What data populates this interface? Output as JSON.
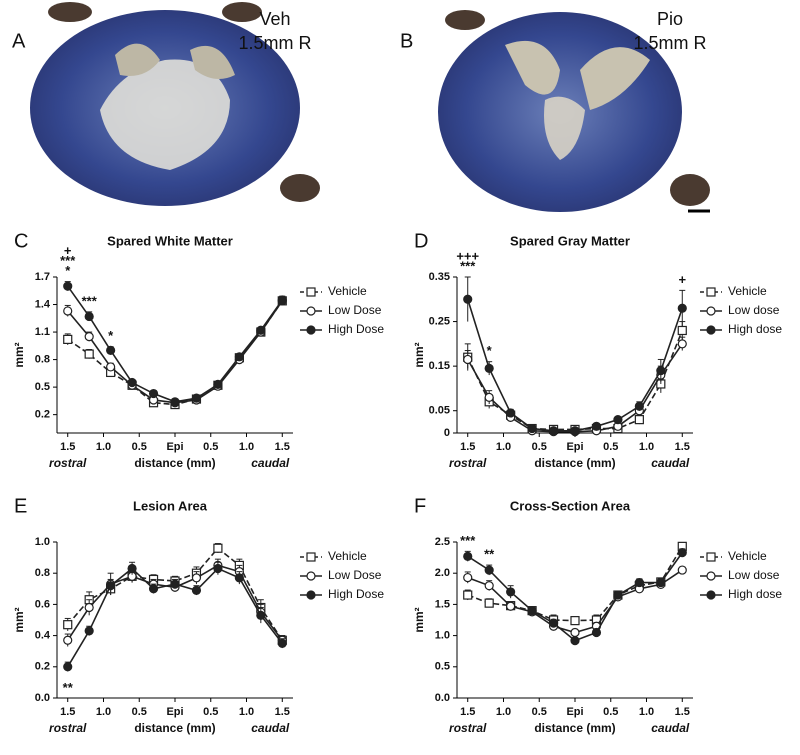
{
  "panels": [
    {
      "letter": "A",
      "label": [
        "Veh",
        "1.5mm R"
      ]
    },
    {
      "letter": "B",
      "label": [
        "Pio",
        "1.5mm R"
      ]
    }
  ],
  "chart_data": [
    {
      "type": "line",
      "panel": "C",
      "title": "Spared White Matter",
      "ylabel": "mm²",
      "xlabel": "distance (mm)",
      "x_left_label": "rostral",
      "x_right_label": "caudal",
      "x": [
        -1.5,
        -1.2,
        -0.9,
        -0.6,
        -0.3,
        0,
        0.3,
        0.6,
        0.9,
        1.2,
        1.5
      ],
      "xlim": [
        -1.65,
        1.65
      ],
      "xticks": [
        {
          "value": -1.5,
          "label": "1.5"
        },
        {
          "value": -1,
          "label": "1.0"
        },
        {
          "value": -0.5,
          "label": "0.5"
        },
        {
          "value": 0,
          "label": "Epi"
        },
        0.5,
        {
          "value": 1,
          "label": "1.0"
        },
        1.5
      ],
      "ylim": [
        0,
        1.7
      ],
      "yticks": [
        0.2,
        0.5,
        0.8,
        1.1,
        1.4,
        1.7
      ],
      "series": [
        {
          "name": "Vehicle",
          "color": "#222",
          "marker": "square",
          "filled": false,
          "dashed": true,
          "values": [
            1.02,
            0.86,
            0.66,
            0.52,
            0.33,
            0.31,
            0.37,
            0.52,
            0.82,
            1.1,
            1.44
          ],
          "errors": [
            0.06,
            0.05,
            0.04,
            0.03,
            0.02,
            0.02,
            0.02,
            0.03,
            0.03,
            0.03,
            0.05
          ]
        },
        {
          "name": "Low Dose",
          "color": "#222",
          "marker": "circle",
          "filled": false,
          "dashed": false,
          "values": [
            1.33,
            1.05,
            0.72,
            0.52,
            0.36,
            0.33,
            0.36,
            0.51,
            0.8,
            1.1,
            1.44
          ],
          "errors": [
            0.06,
            0.05,
            0.04,
            0.03,
            0.02,
            0.02,
            0.02,
            0.02,
            0.03,
            0.03,
            0.04
          ]
        },
        {
          "name": "High Dose",
          "color": "#222",
          "marker": "circle",
          "filled": true,
          "dashed": false,
          "values": [
            1.6,
            1.27,
            0.9,
            0.55,
            0.43,
            0.34,
            0.38,
            0.53,
            0.83,
            1.12,
            1.45
          ],
          "errors": [
            0.05,
            0.05,
            0.04,
            0.03,
            0.03,
            0.02,
            0.02,
            0.02,
            0.03,
            0.03,
            0.04
          ]
        }
      ],
      "annotations": [
        {
          "text": "*",
          "x": -1.5
        },
        {
          "text": "***",
          "x": -1.5
        },
        {
          "text": "+",
          "x": -1.5
        },
        {
          "text": "***",
          "x": -1.2
        },
        {
          "text": "*",
          "x": -0.9
        }
      ]
    },
    {
      "type": "line",
      "panel": "D",
      "title": "Spared Gray Matter",
      "ylabel": "mm²",
      "xlabel": "distance (mm)",
      "x_left_label": "rostral",
      "x_right_label": "caudal",
      "x": [
        -1.5,
        -1.2,
        -0.9,
        -0.6,
        -0.3,
        0,
        0.3,
        0.6,
        0.9,
        1.2,
        1.5
      ],
      "xlim": [
        -1.65,
        1.65
      ],
      "xticks": [
        {
          "value": -1.5,
          "label": "1.5"
        },
        {
          "value": -1,
          "label": "1.0"
        },
        {
          "value": -0.5,
          "label": "0.5"
        },
        {
          "value": 0,
          "label": "Epi"
        },
        0.5,
        {
          "value": 1,
          "label": "1.0"
        },
        1.5
      ],
      "ylim": [
        0,
        0.35
      ],
      "yticks": [
        0,
        0.05,
        0.15,
        0.25,
        0.35
      ],
      "series": [
        {
          "name": "Vehicle",
          "color": "#222",
          "marker": "square",
          "filled": false,
          "dashed": true,
          "values": [
            0.17,
            0.07,
            0.04,
            0.01,
            0.008,
            0.008,
            0.01,
            0.01,
            0.03,
            0.11,
            0.23
          ],
          "errors": [
            0.03,
            0.015,
            0.008,
            0.004,
            0.004,
            0.004,
            0.004,
            0.005,
            0.01,
            0.02,
            0.02
          ]
        },
        {
          "name": "Low dose",
          "color": "#222",
          "marker": "circle",
          "filled": false,
          "dashed": false,
          "values": [
            0.165,
            0.08,
            0.035,
            0.005,
            0.003,
            0.003,
            0.005,
            0.015,
            0.05,
            0.13,
            0.2
          ],
          "errors": [
            0.02,
            0.015,
            0.008,
            0.004,
            0.003,
            0.003,
            0.003,
            0.005,
            0.01,
            0.02,
            0.015
          ]
        },
        {
          "name": "High dose",
          "color": "#222",
          "marker": "circle",
          "filled": true,
          "dashed": false,
          "values": [
            0.3,
            0.145,
            0.045,
            0.01,
            0.005,
            0.005,
            0.015,
            0.03,
            0.06,
            0.14,
            0.28
          ],
          "errors": [
            0.05,
            0.015,
            0.008,
            0.004,
            0.003,
            0.003,
            0.004,
            0.006,
            0.01,
            0.025,
            0.04
          ]
        }
      ],
      "annotations": [
        {
          "text": "***",
          "x": -1.5
        },
        {
          "text": "+++",
          "x": -1.5
        },
        {
          "text": "*",
          "x": -1.2
        },
        {
          "text": "+",
          "x": 1.5
        }
      ]
    },
    {
      "type": "line",
      "panel": "E",
      "title": "Lesion Area",
      "ylabel": "mm²",
      "xlabel": "distance (mm)",
      "x_left_label": "rostral",
      "x_right_label": "caudal",
      "x": [
        -1.5,
        -1.2,
        -0.9,
        -0.6,
        -0.3,
        0,
        0.3,
        0.6,
        0.9,
        1.2,
        1.5
      ],
      "xlim": [
        -1.65,
        1.65
      ],
      "xticks": [
        {
          "value": -1.5,
          "label": "1.5"
        },
        {
          "value": -1,
          "label": "1.0"
        },
        {
          "value": -0.5,
          "label": "0.5"
        },
        {
          "value": 0,
          "label": "Epi"
        },
        0.5,
        {
          "value": 1,
          "label": "1.0"
        },
        1.5
      ],
      "ylim": [
        0,
        1
      ],
      "yticks": [
        {
          "value": 0,
          "label": "0.0"
        },
        0.2,
        0.4,
        0.6,
        0.8,
        {
          "value": 1,
          "label": "1.0"
        }
      ],
      "series": [
        {
          "name": "Vehicle",
          "color": "#222",
          "marker": "square",
          "filled": false,
          "dashed": true,
          "values": [
            0.47,
            0.63,
            0.7,
            0.78,
            0.76,
            0.75,
            0.8,
            0.96,
            0.85,
            0.58,
            0.37
          ],
          "errors": [
            0.04,
            0.05,
            0.04,
            0.04,
            0.03,
            0.03,
            0.04,
            0.03,
            0.04,
            0.05,
            0.03
          ]
        },
        {
          "name": "Low Dose",
          "color": "#222",
          "marker": "circle",
          "filled": false,
          "dashed": false,
          "values": [
            0.37,
            0.58,
            0.73,
            0.78,
            0.73,
            0.71,
            0.77,
            0.85,
            0.81,
            0.55,
            0.37
          ],
          "errors": [
            0.04,
            0.05,
            0.07,
            0.04,
            0.03,
            0.03,
            0.04,
            0.04,
            0.04,
            0.05,
            0.03
          ]
        },
        {
          "name": "High Dose",
          "color": "#222",
          "marker": "circle",
          "filled": true,
          "dashed": false,
          "values": [
            0.2,
            0.43,
            0.72,
            0.83,
            0.7,
            0.73,
            0.69,
            0.83,
            0.77,
            0.53,
            0.35
          ],
          "errors": [
            0.03,
            0.03,
            0.04,
            0.04,
            0.03,
            0.03,
            0.03,
            0.04,
            0.04,
            0.05,
            0.03
          ]
        }
      ],
      "annotations": [
        {
          "text": "**",
          "x": -1.5,
          "position": "below"
        }
      ]
    },
    {
      "type": "line",
      "panel": "F",
      "title": "Cross-Section Area",
      "ylabel": "mm²",
      "xlabel": "distance (mm)",
      "x_left_label": "rostral",
      "x_right_label": "caudal",
      "x": [
        -1.5,
        -1.2,
        -0.9,
        -0.6,
        -0.3,
        0,
        0.3,
        0.6,
        0.9,
        1.2,
        1.5
      ],
      "xlim": [
        -1.65,
        1.65
      ],
      "xticks": [
        {
          "value": -1.5,
          "label": "1.5"
        },
        {
          "value": -1,
          "label": "1.0"
        },
        {
          "value": -0.5,
          "label": "0.5"
        },
        {
          "value": 0,
          "label": "Epi"
        },
        0.5,
        {
          "value": 1,
          "label": "1.0"
        },
        1.5
      ],
      "ylim": [
        0,
        2.5
      ],
      "yticks": [
        {
          "value": 0,
          "label": "0.0"
        },
        0.5,
        {
          "value": 1,
          "label": "1.0"
        },
        1.5,
        {
          "value": 2,
          "label": "2.0"
        },
        2.5
      ],
      "series": [
        {
          "name": "Vehicle",
          "color": "#222",
          "marker": "square",
          "filled": false,
          "dashed": true,
          "values": [
            1.65,
            1.52,
            1.48,
            1.4,
            1.25,
            1.24,
            1.25,
            1.65,
            1.8,
            1.86,
            2.43
          ],
          "errors": [
            0.08,
            0.07,
            0.06,
            0.06,
            0.08,
            0.06,
            0.08,
            0.06,
            0.07,
            0.06,
            0.06
          ]
        },
        {
          "name": "Low dose",
          "color": "#222",
          "marker": "circle",
          "filled": false,
          "dashed": false,
          "values": [
            1.93,
            1.8,
            1.47,
            1.38,
            1.15,
            1.05,
            1.15,
            1.62,
            1.75,
            1.82,
            2.05
          ],
          "errors": [
            0.09,
            0.08,
            0.06,
            0.06,
            0.06,
            0.05,
            0.06,
            0.06,
            0.06,
            0.06,
            0.05
          ]
        },
        {
          "name": "High dose",
          "color": "#222",
          "marker": "circle",
          "filled": true,
          "dashed": false,
          "values": [
            2.27,
            2.05,
            1.7,
            1.4,
            1.2,
            0.92,
            1.05,
            1.65,
            1.85,
            1.85,
            2.33
          ],
          "errors": [
            0.08,
            0.08,
            0.1,
            0.06,
            0.06,
            0.04,
            0.06,
            0.06,
            0.06,
            0.06,
            0.06
          ]
        }
      ],
      "annotations": [
        {
          "text": "***",
          "x": -1.5
        },
        {
          "text": "**",
          "x": -1.2
        }
      ]
    }
  ]
}
